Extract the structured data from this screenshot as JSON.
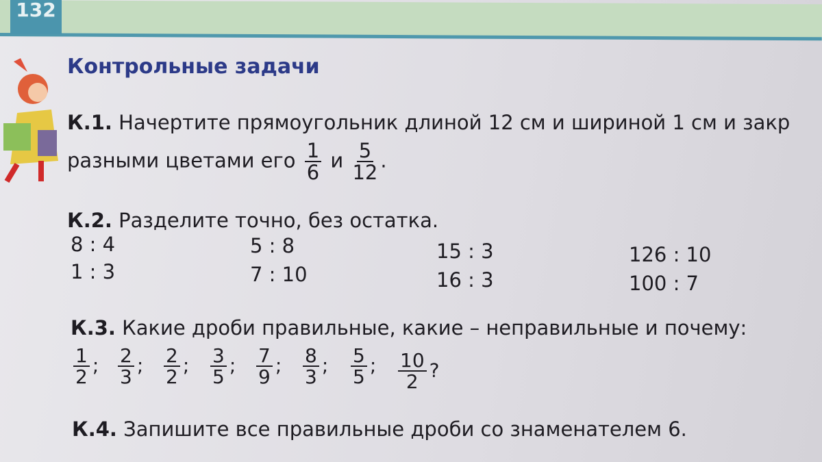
{
  "page_number": "132",
  "title": "Контрольные задачи",
  "k1": {
    "label": "К.1.",
    "line1": "Начертите прямоугольник длиной 12 см и шириной 1 см и закр",
    "line2": "разными цветами его",
    "and": "и",
    "f1": {
      "n": "1",
      "d": "6"
    },
    "f2": {
      "n": "5",
      "d": "12"
    },
    "end": "."
  },
  "k2": {
    "label": "К.2.",
    "text": "Разделите точно, без остатка.",
    "items": [
      "8 : 4",
      "1 : 3",
      "5 : 8",
      "7 : 10",
      "15 : 3",
      "16 : 3",
      "126 : 10",
      "100 : 7"
    ]
  },
  "k3": {
    "label": "К.3.",
    "text": "Какие дроби правильные, какие – неправильные и почему:",
    "fractions": [
      {
        "n": "1",
        "d": "2",
        "s": ";"
      },
      {
        "n": "2",
        "d": "3",
        "s": ";"
      },
      {
        "n": "2",
        "d": "2",
        "s": ";"
      },
      {
        "n": "3",
        "d": "5",
        "s": ";"
      },
      {
        "n": "7",
        "d": "9",
        "s": ";"
      },
      {
        "n": "8",
        "d": "3",
        "s": ";"
      },
      {
        "n": "5",
        "d": "5",
        "s": ";"
      },
      {
        "n": "10",
        "d": "2",
        "s": "?"
      }
    ]
  },
  "k4": {
    "label": "К.4.",
    "text": "Запишите все правильные дроби со знаменателем 6."
  },
  "colors": {
    "title": "#2c3a88",
    "band": "#c5dcc0",
    "accent": "#4b95ad"
  }
}
